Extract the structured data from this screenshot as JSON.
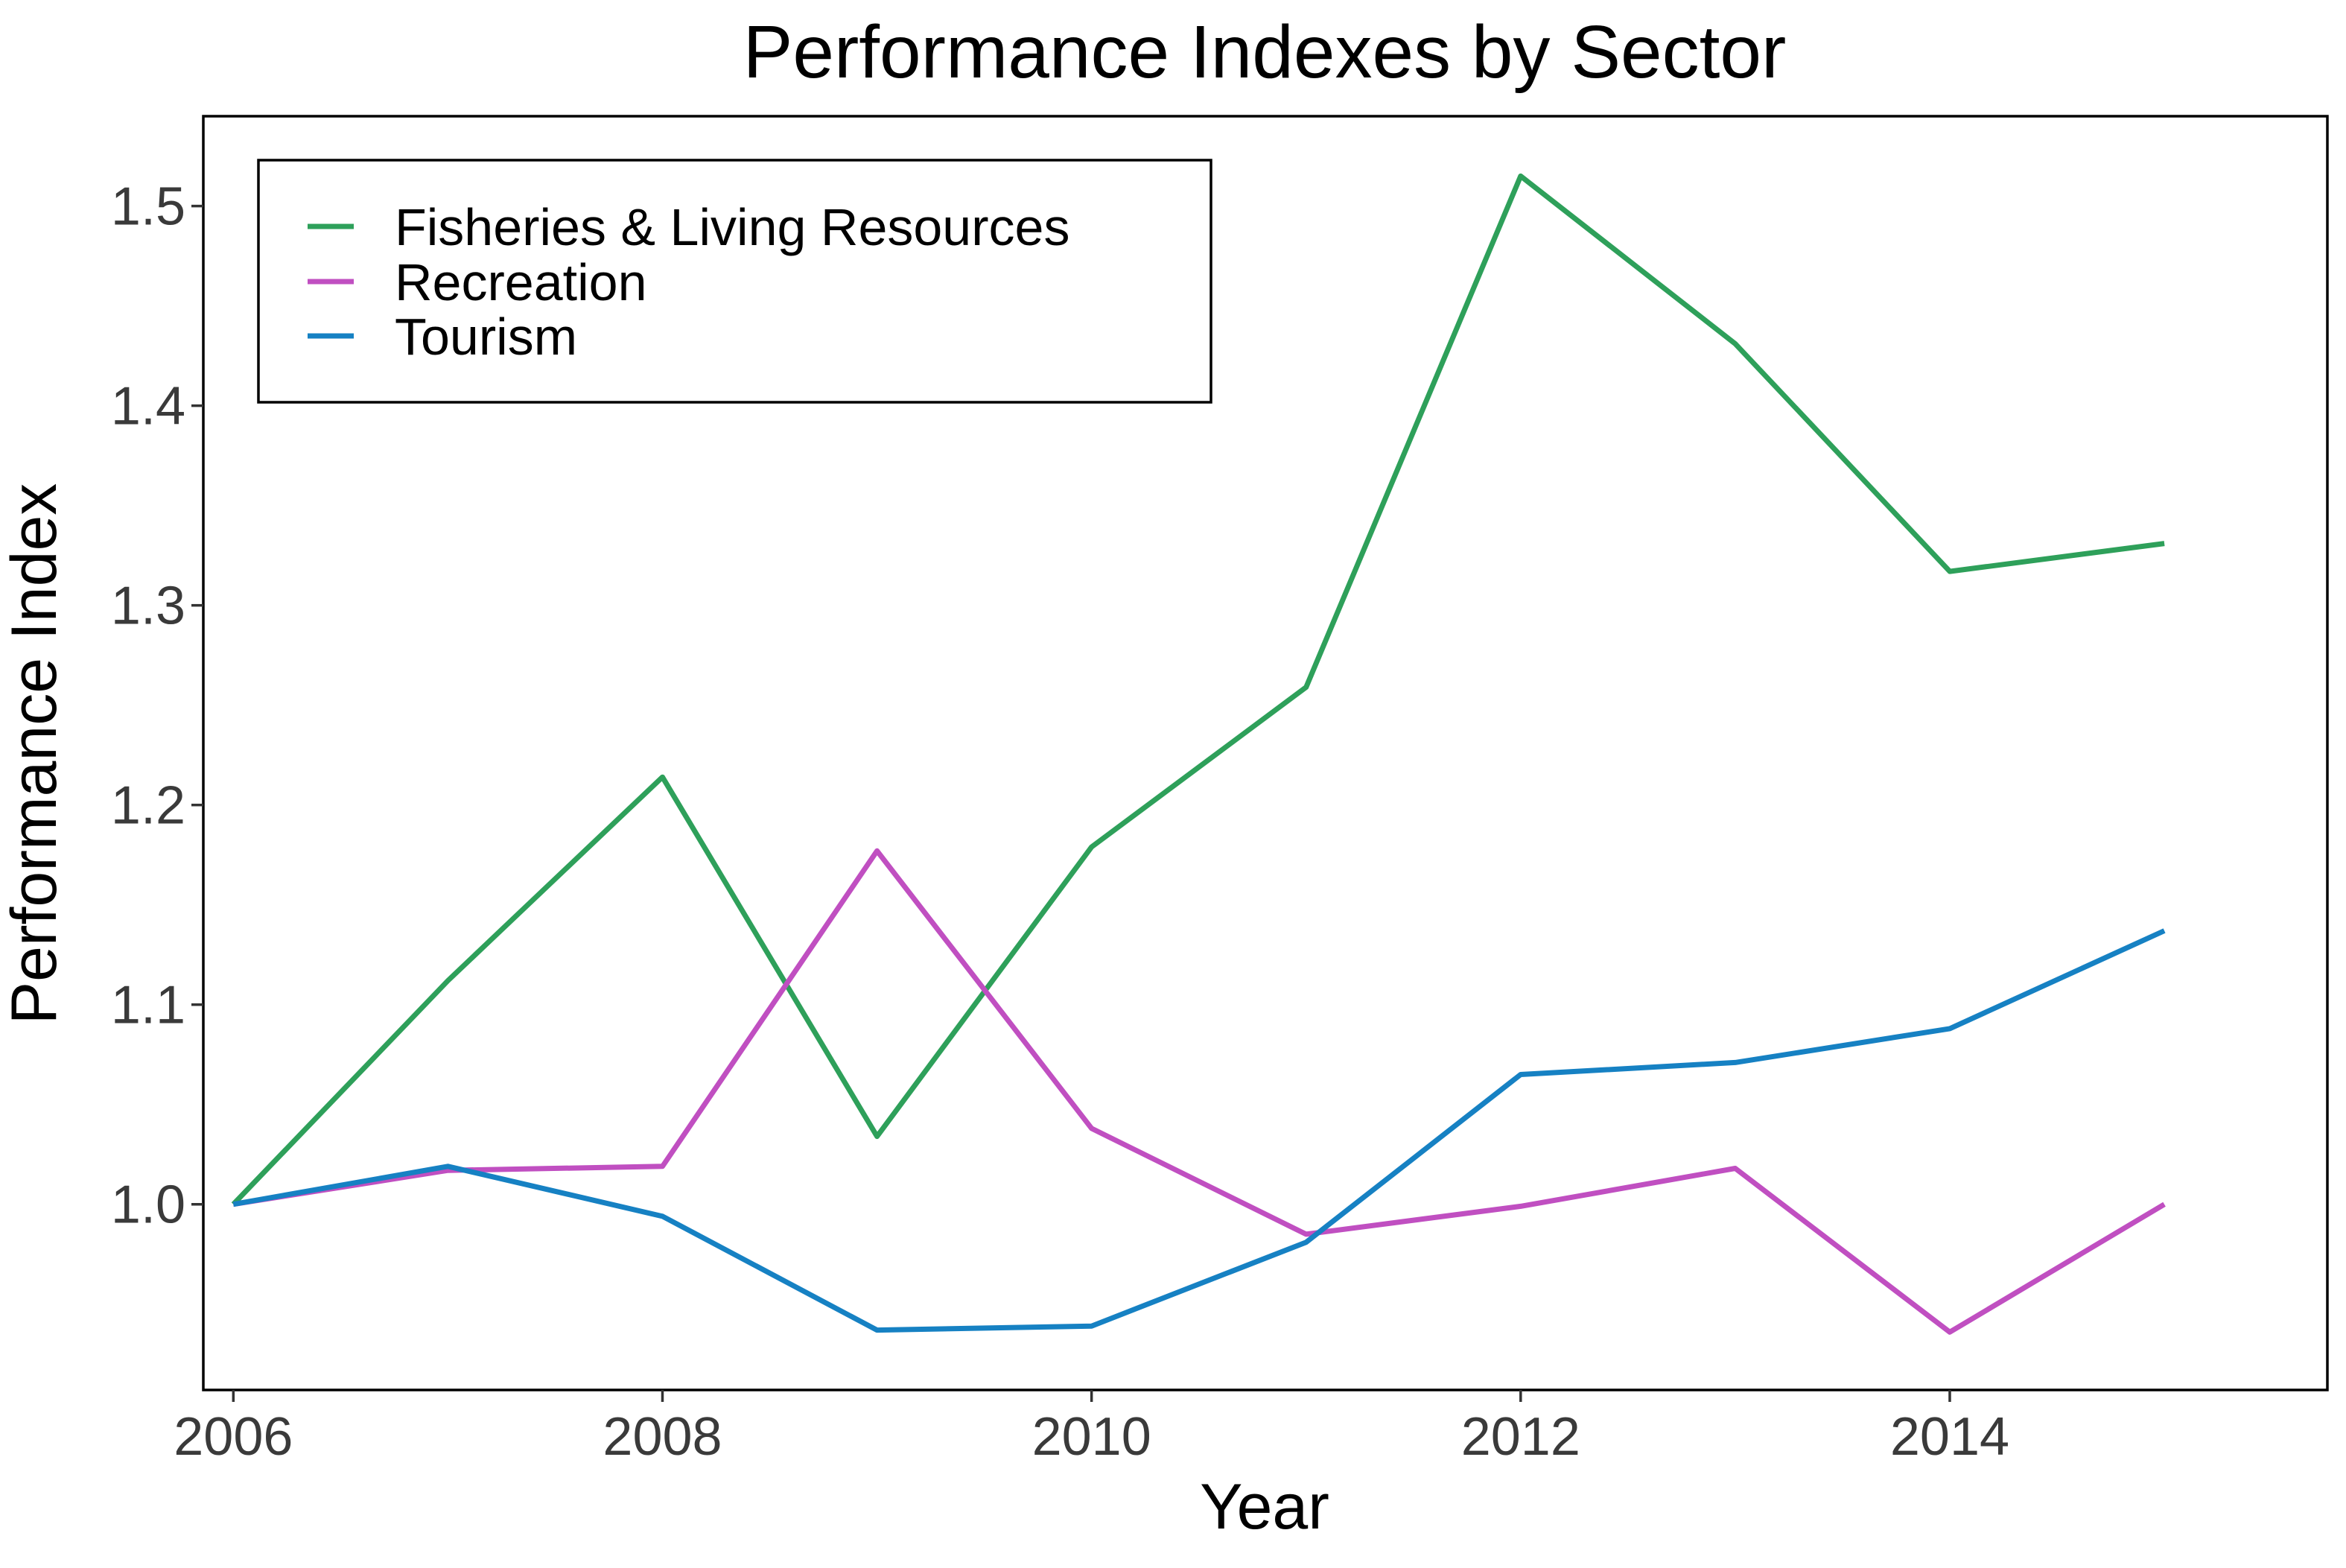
{
  "chart_data": {
    "type": "line",
    "title": "Performance Indexes by Sector",
    "xlabel": "Year",
    "ylabel": "Performance Index",
    "xlim": [
      2005.86,
      2015.76
    ],
    "ylim": [
      0.907,
      1.545
    ],
    "x_ticks": [
      2006,
      2008,
      2010,
      2012,
      2014
    ],
    "x_tick_labels": [
      "2006",
      "2008",
      "2010",
      "2012",
      "2014"
    ],
    "y_ticks": [
      1.0,
      1.1,
      1.2,
      1.3,
      1.4,
      1.5
    ],
    "y_tick_labels": [
      "1.0",
      "1.1",
      "1.2",
      "1.3",
      "1.4",
      "1.5"
    ],
    "grid": false,
    "legend_position": "top-left",
    "x": [
      2006,
      2007,
      2008,
      2009,
      2010,
      2011,
      2012,
      2013,
      2014,
      2015
    ],
    "series": [
      {
        "name": "Fisheries & Living Resources",
        "color": "#2ea05a",
        "values": [
          1.0,
          1.112,
          1.214,
          1.034,
          1.179,
          1.259,
          1.515,
          1.431,
          1.317,
          1.331
        ]
      },
      {
        "name": "Recreation",
        "color": "#c04fc1",
        "values": [
          1.0,
          1.017,
          1.019,
          1.177,
          1.038,
          0.985,
          0.999,
          1.018,
          0.936,
          1.0
        ]
      },
      {
        "name": "Tourism",
        "color": "#1681c3",
        "values": [
          1.0,
          1.019,
          0.994,
          0.937,
          0.939,
          0.981,
          1.065,
          1.071,
          1.088,
          1.137
        ]
      }
    ]
  }
}
